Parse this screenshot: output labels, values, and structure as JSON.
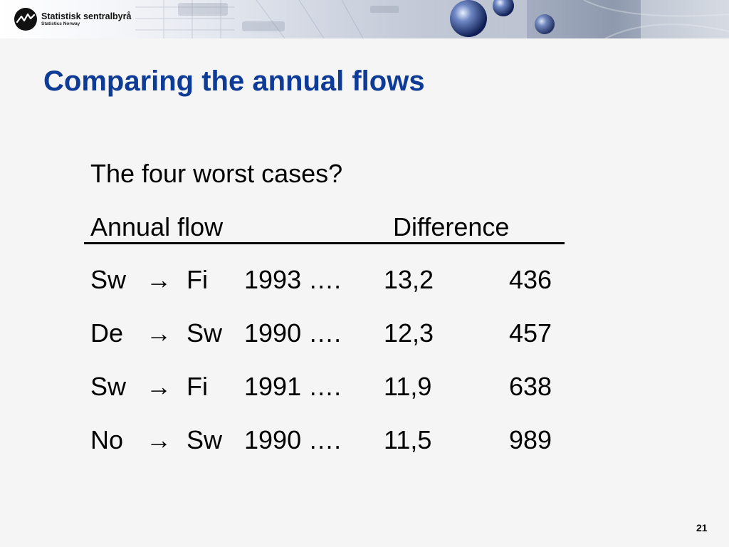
{
  "header": {
    "logo_name": "Statistisk sentralbyrå",
    "logo_sub": "Statistics Norway"
  },
  "slide": {
    "title": "Comparing the annual flows",
    "intro": "The four worst cases?",
    "column_headers": {
      "flow": "Annual flow",
      "difference": "Difference"
    },
    "rows": [
      {
        "from": "Sw",
        "arrow": "→",
        "to": "Fi",
        "year": "1993 ….",
        "difference": "13,2",
        "value": "436"
      },
      {
        "from": "De",
        "arrow": "→",
        "to": "Sw",
        "year": "1990 ….",
        "difference": "12,3",
        "value": "457"
      },
      {
        "from": "Sw",
        "arrow": "→",
        "to": "Fi",
        "year": "1991 ….",
        "difference": "11,9",
        "value": "638"
      },
      {
        "from": "No",
        "arrow": "→",
        "to": "Sw",
        "year": "1990 ….",
        "difference": "11,5",
        "value": "989"
      }
    ],
    "page_number": "21"
  },
  "colors": {
    "title": "#0d3b96",
    "text": "#000000",
    "background": "#f5f5f5"
  }
}
